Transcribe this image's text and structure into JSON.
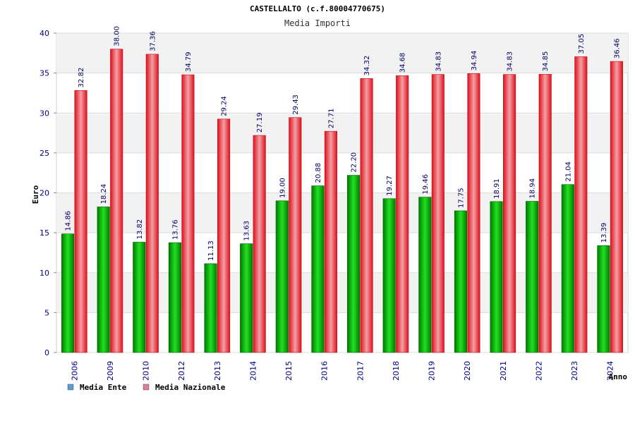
{
  "chart_data": {
    "type": "bar",
    "title": "CASTELLALTO (c.f.80004770675)",
    "subtitle": "Media Importi",
    "xlabel": "Anno",
    "ylabel": "Euro",
    "ylim": [
      0,
      40
    ],
    "yticks": [
      0,
      5,
      10,
      15,
      20,
      25,
      30,
      35,
      40
    ],
    "categories": [
      "2006",
      "2009",
      "2010",
      "2012",
      "2013",
      "2014",
      "2015",
      "2016",
      "2017",
      "2018",
      "2019",
      "2020",
      "2021",
      "2022",
      "2023",
      "2024"
    ],
    "series": [
      {
        "name": "Media Ente",
        "color": "#00c000",
        "legend_color": "#5b9bd5",
        "values": [
          14.86,
          18.24,
          13.82,
          13.76,
          11.13,
          13.63,
          19.0,
          20.88,
          22.2,
          19.27,
          19.46,
          17.75,
          18.91,
          18.94,
          21.04,
          13.39
        ],
        "labels": [
          "14.86",
          "18.24",
          "13.82",
          "13.76",
          "11.13",
          "13.63",
          "19.00",
          "20.88",
          "22.20",
          "19.27",
          "19.46",
          "17.75",
          "18.91",
          "18.94",
          "21.04",
          "13.39"
        ]
      },
      {
        "name": "Media Nazionale",
        "color": "#e8202a",
        "legend_color": "#e07aa0",
        "values": [
          32.82,
          38.0,
          37.36,
          34.79,
          29.24,
          27.19,
          29.43,
          27.71,
          34.32,
          34.68,
          34.83,
          34.94,
          34.83,
          34.85,
          37.05,
          36.46
        ],
        "labels": [
          "32.82",
          "38.00",
          "37.36",
          "34.79",
          "29.24",
          "27.19",
          "29.43",
          "27.71",
          "34.32",
          "34.68",
          "34.83",
          "34.94",
          "34.83",
          "34.85",
          "37.05",
          "36.46"
        ]
      }
    ],
    "grid": true,
    "legend": "bottom-left"
  }
}
